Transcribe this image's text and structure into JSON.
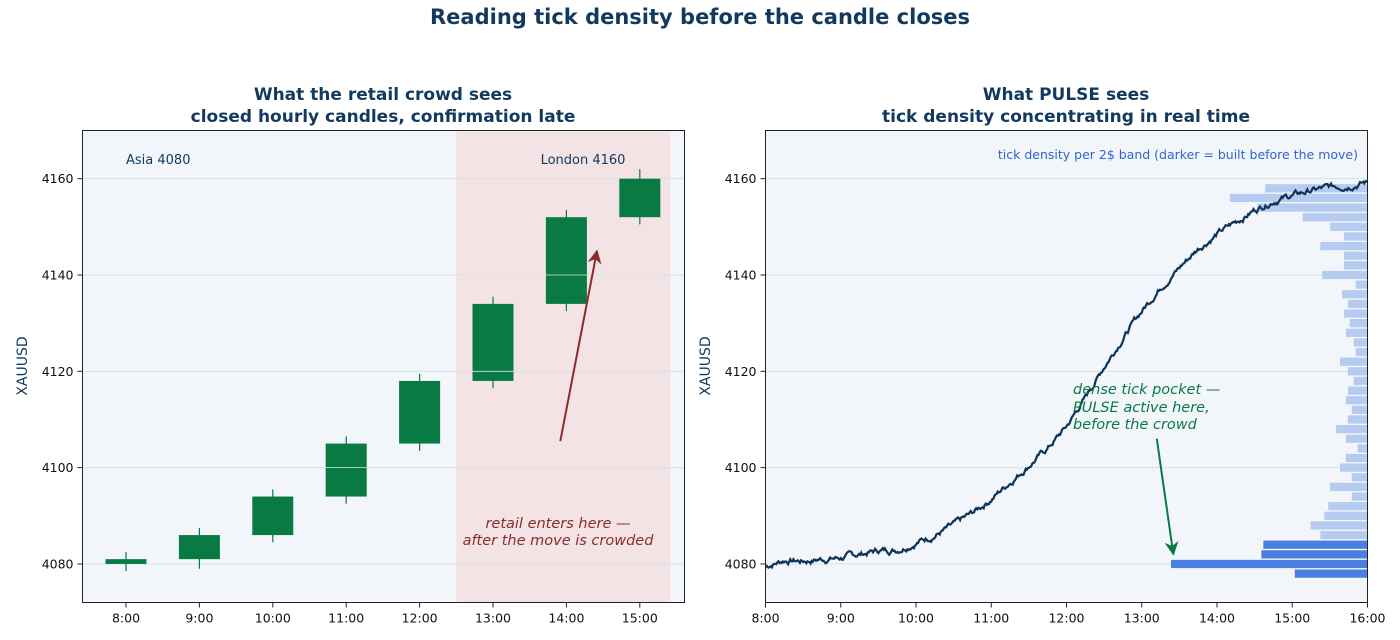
{
  "figure": {
    "title": "Reading tick density before the candle closes"
  },
  "colors": {
    "candle": "#0a7a45",
    "price_line": "#0e3557",
    "panel_bg": "#f2f6fa",
    "retail_band": "#f4e3e5",
    "retail_arrow": "#8a2c2c",
    "density_light": "#b5cbef",
    "density_dark": "#4a7ee0",
    "density_note": "#2f66c9",
    "pulse_note": "#0a7a45",
    "title": "#12395e"
  },
  "chart_data": [
    {
      "type": "candlestick",
      "title": "What the retail crowd sees",
      "subtitle": "closed hourly candles, confirmation late",
      "ylabel": "XAUUSD",
      "xlabel": "",
      "categories": [
        "8:00",
        "9:00",
        "10:00",
        "11:00",
        "12:00",
        "13:00",
        "14:00",
        "15:00"
      ],
      "ohlc": [
        {
          "open": 4080,
          "high": 4082.5,
          "low": 4078.5,
          "close": 4081
        },
        {
          "open": 4081,
          "high": 4087.5,
          "low": 4079,
          "close": 4086
        },
        {
          "open": 4086,
          "high": 4095.5,
          "low": 4084.5,
          "close": 4094
        },
        {
          "open": 4094,
          "high": 4106.5,
          "low": 4092.5,
          "close": 4105
        },
        {
          "open": 4105,
          "high": 4119.5,
          "low": 4103.5,
          "close": 4118
        },
        {
          "open": 4118,
          "high": 4135.5,
          "low": 4116.5,
          "close": 4134
        },
        {
          "open": 4134,
          "high": 4153.5,
          "low": 4132.5,
          "close": 4152
        },
        {
          "open": 4152,
          "high": 4162,
          "low": 4150.5,
          "close": 4160
        }
      ],
      "ylim": [
        4072,
        4170
      ],
      "yticks": [
        4080,
        4100,
        4120,
        4140,
        4160
      ],
      "grid": "horizontal",
      "shaded_region": {
        "from_category": "12:30",
        "to_category": "15:25"
      },
      "annotations": {
        "asia": "Asia 4080",
        "london": "London 4160",
        "retail_line1": "retail enters here —",
        "retail_line2": "after the move is crowded"
      },
      "arrow": {
        "from": {
          "x": "13:55",
          "y": 4105.5
        },
        "to": {
          "x": "14:25",
          "y": 4145
        }
      }
    },
    {
      "type": "line",
      "title": "What PULSE sees",
      "subtitle": "tick density concentrating in real time",
      "ylabel": "XAUUSD",
      "xlabel": "",
      "xlim_hours": [
        8,
        16
      ],
      "xticks": [
        "8:00",
        "9:00",
        "10:00",
        "11:00",
        "12:00",
        "13:00",
        "14:00",
        "15:00",
        "16:00"
      ],
      "ylim": [
        4072,
        4170
      ],
      "yticks": [
        4080,
        4100,
        4120,
        4140,
        4160
      ],
      "grid": "horizontal",
      "series": [
        {
          "path": [
            [
              8.0,
              4079.5
            ],
            [
              8.25,
              4080.8
            ],
            [
              8.5,
              4080.6
            ],
            [
              8.75,
              4081.0
            ],
            [
              9.0,
              4081.3
            ],
            [
              9.25,
              4082.0
            ],
            [
              9.5,
              4082.8
            ],
            [
              9.75,
              4083.0
            ],
            [
              10.0,
              4084.5
            ],
            [
              10.25,
              4086.0
            ],
            [
              10.5,
              4088.0
            ],
            [
              10.75,
              4090.5
            ],
            [
              11.0,
              4093.5
            ],
            [
              11.25,
              4097.0
            ],
            [
              11.5,
              4100.5
            ],
            [
              11.75,
              4104.0
            ],
            [
              12.0,
              4108.5
            ],
            [
              12.25,
              4114.5
            ],
            [
              12.5,
              4121.0
            ],
            [
              12.75,
              4127.0
            ],
            [
              13.0,
              4132.5
            ],
            [
              13.25,
              4137.5
            ],
            [
              13.5,
              4141.5
            ],
            [
              13.75,
              4145.5
            ],
            [
              14.0,
              4148.5
            ],
            [
              14.25,
              4151.0
            ],
            [
              14.5,
              4153.5
            ],
            [
              14.75,
              4155.5
            ],
            [
              15.0,
              4156.5
            ],
            [
              15.25,
              4157.5
            ],
            [
              15.5,
              4158.2
            ],
            [
              15.75,
              4158.7
            ],
            [
              16.0,
              4159.3
            ]
          ]
        }
      ],
      "tick_density": {
        "band_width_usd": 2,
        "note": "tick density per 2$ band (darker = built before the move)",
        "bands": [
          {
            "price": 4078,
            "value": 0.37,
            "dark": true
          },
          {
            "price": 4080,
            "value": 1.0,
            "dark": true
          },
          {
            "price": 4082,
            "value": 0.54,
            "dark": true
          },
          {
            "price": 4084,
            "value": 0.53,
            "dark": true
          },
          {
            "price": 4086,
            "value": 0.24,
            "dark": false
          },
          {
            "price": 4088,
            "value": 0.29,
            "dark": false
          },
          {
            "price": 4090,
            "value": 0.22,
            "dark": false
          },
          {
            "price": 4092,
            "value": 0.2,
            "dark": false
          },
          {
            "price": 4094,
            "value": 0.08,
            "dark": false
          },
          {
            "price": 4096,
            "value": 0.19,
            "dark": false
          },
          {
            "price": 4098,
            "value": 0.08,
            "dark": false
          },
          {
            "price": 4100,
            "value": 0.14,
            "dark": false
          },
          {
            "price": 4102,
            "value": 0.11,
            "dark": false
          },
          {
            "price": 4104,
            "value": 0.05,
            "dark": false
          },
          {
            "price": 4106,
            "value": 0.11,
            "dark": false
          },
          {
            "price": 4108,
            "value": 0.16,
            "dark": false
          },
          {
            "price": 4110,
            "value": 0.1,
            "dark": false
          },
          {
            "price": 4112,
            "value": 0.08,
            "dark": false
          },
          {
            "price": 4114,
            "value": 0.11,
            "dark": false
          },
          {
            "price": 4116,
            "value": 0.1,
            "dark": false
          },
          {
            "price": 4118,
            "value": 0.07,
            "dark": false
          },
          {
            "price": 4120,
            "value": 0.1,
            "dark": false
          },
          {
            "price": 4122,
            "value": 0.14,
            "dark": false
          },
          {
            "price": 4124,
            "value": 0.06,
            "dark": false
          },
          {
            "price": 4126,
            "value": 0.07,
            "dark": false
          },
          {
            "price": 4128,
            "value": 0.11,
            "dark": false
          },
          {
            "price": 4130,
            "value": 0.09,
            "dark": false
          },
          {
            "price": 4132,
            "value": 0.12,
            "dark": false
          },
          {
            "price": 4134,
            "value": 0.1,
            "dark": false
          },
          {
            "price": 4136,
            "value": 0.13,
            "dark": false
          },
          {
            "price": 4138,
            "value": 0.06,
            "dark": false
          },
          {
            "price": 4140,
            "value": 0.23,
            "dark": false
          },
          {
            "price": 4142,
            "value": 0.12,
            "dark": false
          },
          {
            "price": 4144,
            "value": 0.12,
            "dark": false
          },
          {
            "price": 4146,
            "value": 0.24,
            "dark": false
          },
          {
            "price": 4148,
            "value": 0.12,
            "dark": false
          },
          {
            "price": 4150,
            "value": 0.19,
            "dark": false
          },
          {
            "price": 4152,
            "value": 0.33,
            "dark": false
          },
          {
            "price": 4154,
            "value": 0.56,
            "dark": false
          },
          {
            "price": 4156,
            "value": 0.7,
            "dark": false
          },
          {
            "price": 4158,
            "value": 0.52,
            "dark": false
          }
        ]
      },
      "annotations": {
        "pocket_line1": "dense tick pocket —",
        "pocket_line2": "PULSE active here,",
        "pocket_line3": "before the crowd"
      },
      "arrow": {
        "from": {
          "x_hours": 13.2,
          "y": 4106
        },
        "to": {
          "x_hours": 13.42,
          "y": 4082
        }
      }
    }
  ]
}
